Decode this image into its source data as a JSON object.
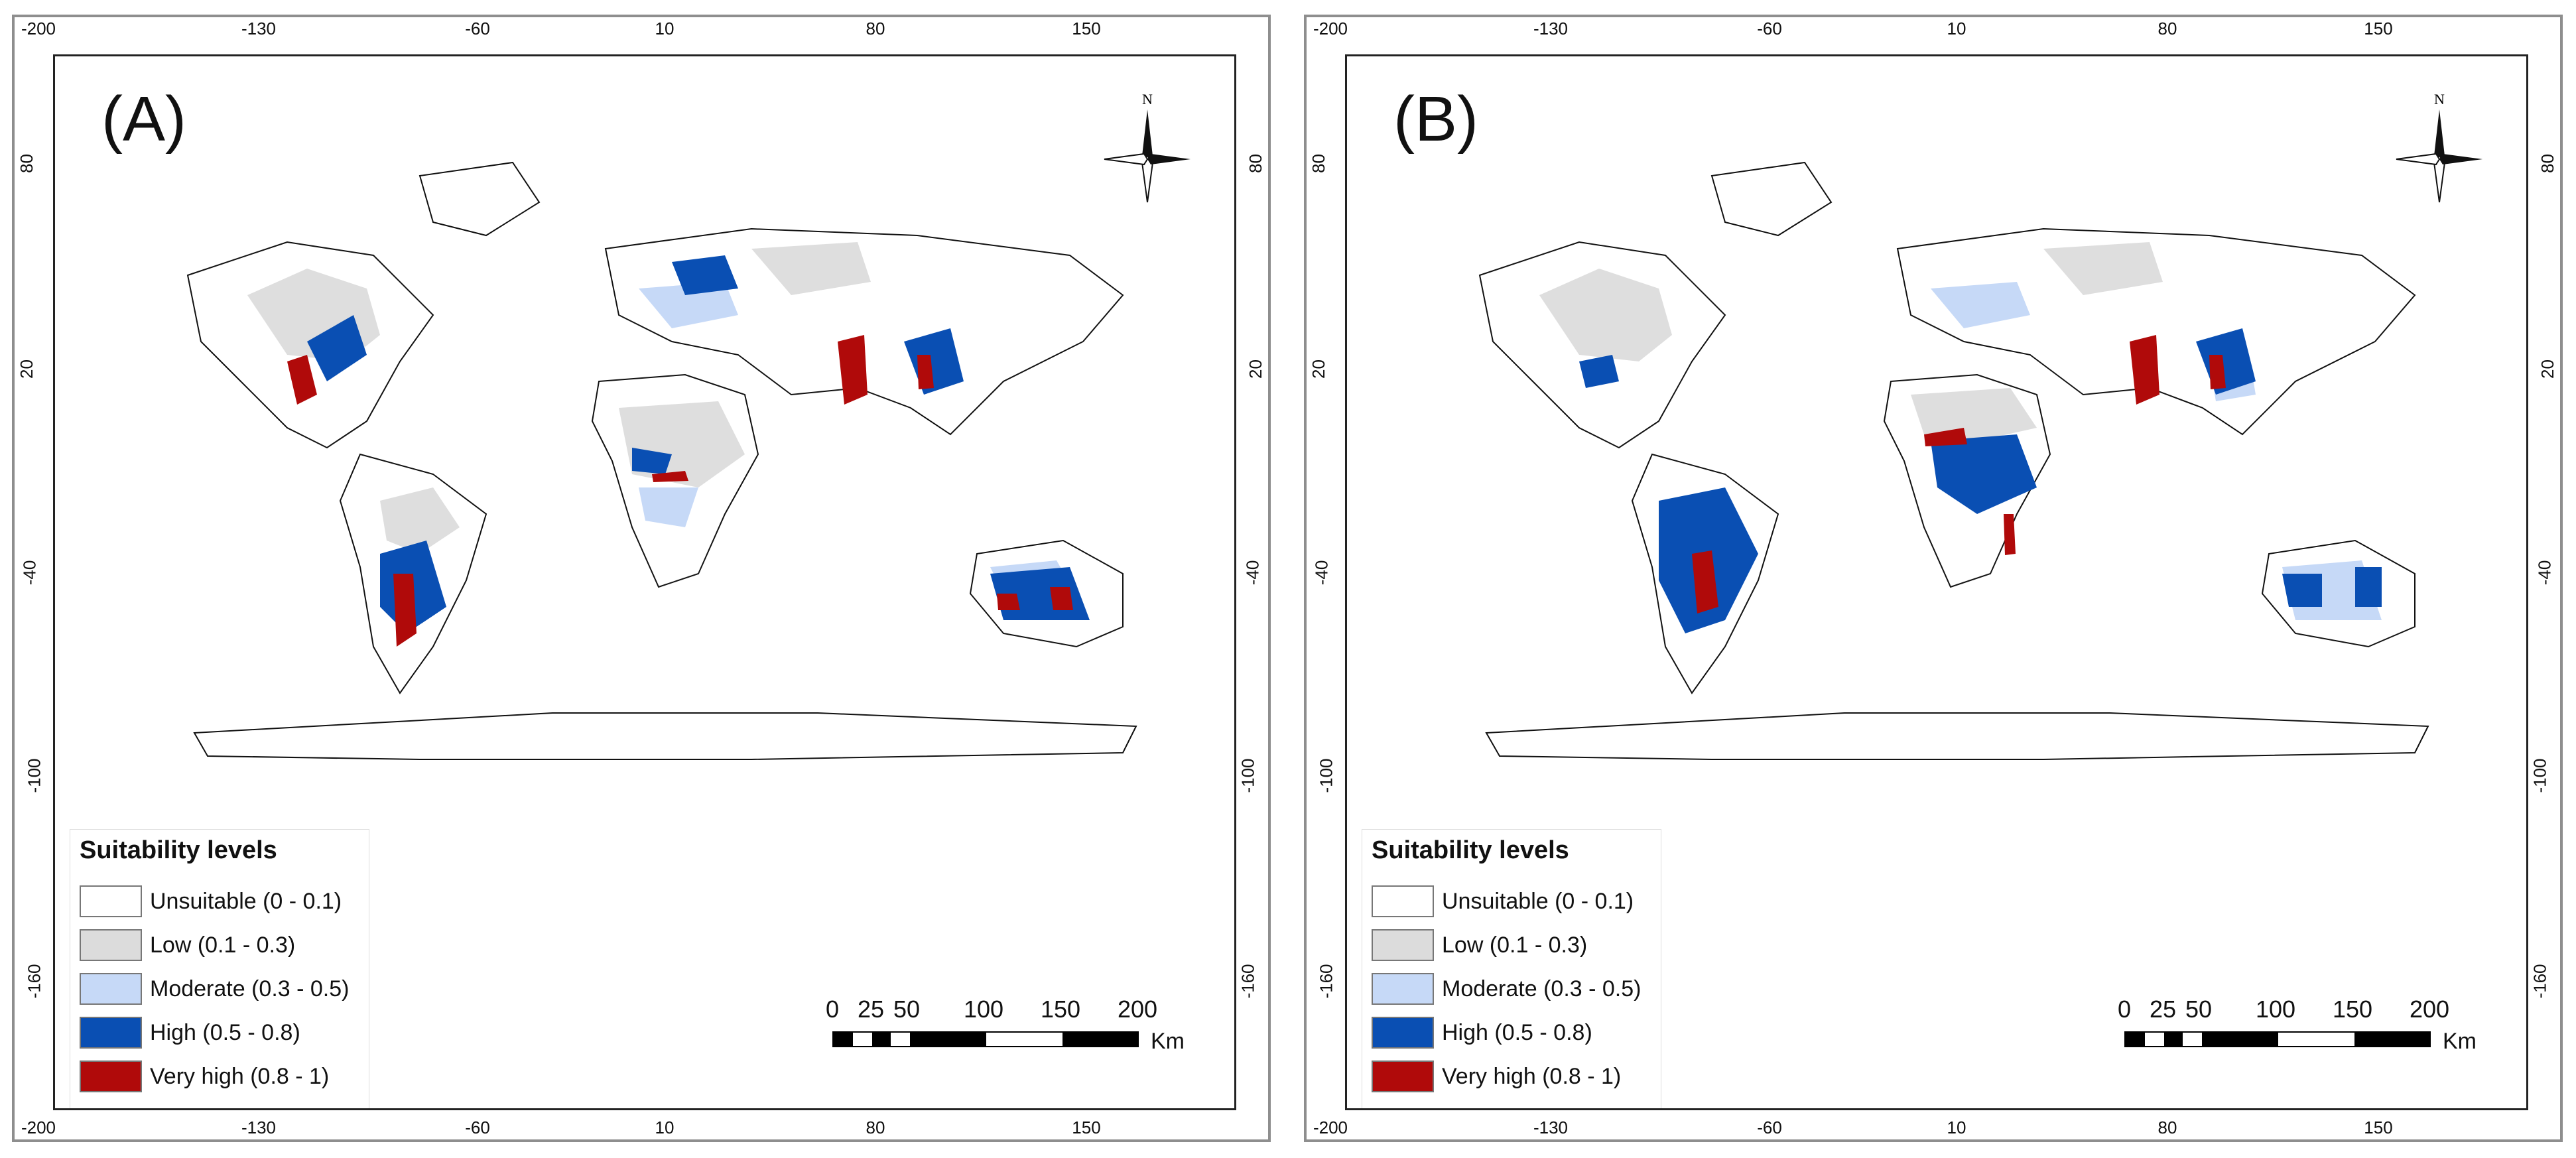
{
  "panels": [
    {
      "id": "A",
      "label": "(A)",
      "x_ticks": [
        "-200",
        "-130",
        "-60",
        "10",
        "80",
        "150"
      ],
      "y_ticks": [
        "80",
        "20",
        "-40",
        "-100",
        "-160"
      ]
    },
    {
      "id": "B",
      "label": "(B)",
      "x_ticks": [
        "-200",
        "-130",
        "-60",
        "10",
        "80",
        "150"
      ],
      "y_ticks": [
        "80",
        "20",
        "-40",
        "-100",
        "-160"
      ]
    }
  ],
  "compass": {
    "north_label": "N"
  },
  "legend": {
    "title": "Suitability levels",
    "items": [
      {
        "label": "Unsuitable (0 - 0.1)",
        "color": "#ffffff"
      },
      {
        "label": "Low (0.1 - 0.3)",
        "color": "#dcdcdc"
      },
      {
        "label": "Moderate (0.3 - 0.5)",
        "color": "#c6d9f7"
      },
      {
        "label": "High (0.5 - 0.8)",
        "color": "#0a4fb3"
      },
      {
        "label": "Very high (0.8 - 1)",
        "color": "#b00a0a"
      }
    ]
  },
  "scalebar": {
    "labels": [
      "0",
      "25",
      "50",
      "100",
      "150",
      "200"
    ],
    "unit": "Km"
  }
}
